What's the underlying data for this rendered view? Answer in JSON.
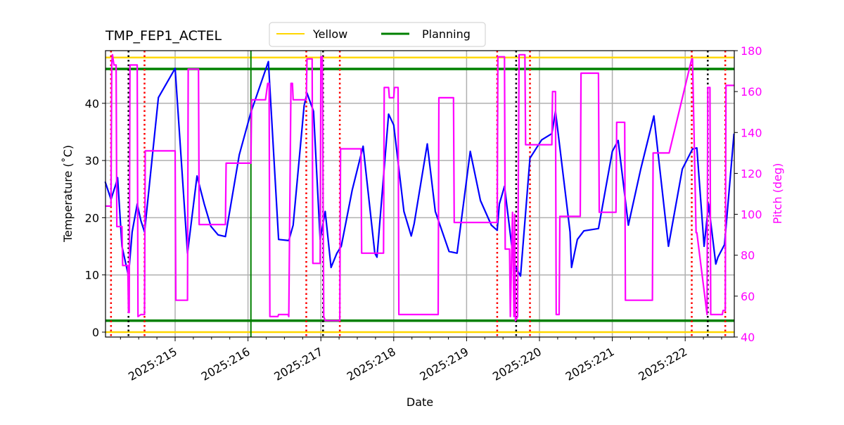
{
  "chart_data": {
    "type": "line",
    "title": "TMP_FEP1_ACTEL",
    "xlabel": "Date",
    "ylabel": "Temperature ($^\\circ$C)",
    "ylabel_display": "Temperature (˚C)",
    "y2label": "Pitch (deg)",
    "x_range": [
      214.04,
      222.67
    ],
    "ylim": [
      -0.9,
      49.3
    ],
    "y2lim": [
      40,
      180
    ],
    "grid": true,
    "x_ticks": [
      215,
      216,
      217,
      218,
      219,
      220,
      221,
      222
    ],
    "x_tick_labels": [
      "2025:215",
      "2025:216",
      "2025:217",
      "2025:218",
      "2025:219",
      "2025:220",
      "2025:221",
      "2025:222"
    ],
    "y_ticks": [
      0,
      10,
      20,
      30,
      40
    ],
    "y2_ticks": [
      40,
      60,
      80,
      100,
      120,
      140,
      160,
      180
    ],
    "legend": {
      "position": "upper center (above axes)",
      "entries": [
        {
          "label": "Yellow",
          "color": "#ffd700"
        },
        {
          "label": "Planning",
          "color": "#008000"
        }
      ]
    },
    "limit_lines": [
      {
        "name": "Yellow high",
        "value": 48,
        "color": "#ffd700"
      },
      {
        "name": "Yellow low",
        "value": 0,
        "color": "#ffd700"
      },
      {
        "name": "Planning high",
        "value": 46,
        "color": "#008000"
      },
      {
        "name": "Planning low",
        "value": 2,
        "color": "#008000"
      }
    ],
    "vertical_lines": [
      {
        "x": 214.12,
        "color": "#ff0000",
        "style": "dotted"
      },
      {
        "x": 214.36,
        "color": "#000000",
        "style": "dotted"
      },
      {
        "x": 214.58,
        "color": "#ff0000",
        "style": "dotted"
      },
      {
        "x": 216.04,
        "color": "#008000",
        "style": "solid"
      },
      {
        "x": 216.8,
        "color": "#ff0000",
        "style": "dotted"
      },
      {
        "x": 217.03,
        "color": "#000000",
        "style": "dotted"
      },
      {
        "x": 217.26,
        "color": "#ff0000",
        "style": "dotted"
      },
      {
        "x": 219.42,
        "color": "#ff0000",
        "style": "dotted"
      },
      {
        "x": 219.68,
        "color": "#000000",
        "style": "dotted"
      },
      {
        "x": 219.87,
        "color": "#ff0000",
        "style": "dotted"
      },
      {
        "x": 222.09,
        "color": "#ff0000",
        "style": "dotted"
      },
      {
        "x": 222.31,
        "color": "#000000",
        "style": "dotted"
      },
      {
        "x": 222.55,
        "color": "#ff0000",
        "style": "dotted"
      }
    ],
    "series": [
      {
        "name": "TMP_FEP1_ACTEL",
        "axis": "left",
        "color": "#0000ff",
        "x": [
          214.04,
          214.12,
          214.19,
          214.21,
          214.27,
          214.36,
          214.41,
          214.48,
          214.53,
          214.58,
          214.77,
          215.0,
          215.17,
          215.3,
          215.4,
          215.49,
          215.59,
          215.69,
          215.88,
          216.04,
          216.28,
          216.42,
          216.56,
          216.62,
          216.77,
          216.81,
          216.9,
          216.99,
          217.06,
          217.14,
          217.22,
          217.28,
          217.43,
          217.58,
          217.74,
          217.77,
          217.93,
          218.0,
          218.14,
          218.24,
          218.28,
          218.46,
          218.57,
          218.76,
          218.87,
          219.05,
          219.19,
          219.34,
          219.42,
          219.45,
          219.52,
          219.65,
          219.74,
          219.87,
          220.03,
          220.17,
          220.22,
          220.42,
          220.44,
          220.52,
          220.61,
          220.81,
          221.0,
          221.08,
          221.22,
          221.39,
          221.57,
          221.77,
          221.96,
          222.1,
          222.16,
          222.26,
          222.32,
          222.42,
          222.45,
          222.54,
          222.67
        ],
        "values": [
          26.3,
          23.2,
          26.0,
          27.0,
          15.0,
          9.8,
          17.5,
          22.4,
          19.5,
          17.5,
          41.0,
          46.1,
          13.8,
          27.3,
          22.4,
          18.5,
          17.0,
          16.7,
          31.0,
          38.4,
          47.3,
          16.2,
          16.0,
          18.7,
          39.6,
          41.8,
          38.6,
          16.2,
          21.1,
          11.3,
          13.8,
          15.0,
          24.8,
          32.5,
          13.8,
          13.1,
          38.1,
          36.2,
          21.1,
          16.8,
          18.9,
          32.9,
          21.1,
          14.1,
          13.8,
          31.6,
          23.0,
          18.7,
          17.8,
          22.4,
          25.5,
          11.9,
          9.8,
          30.4,
          33.6,
          34.7,
          38.6,
          17.5,
          11.3,
          16.2,
          17.7,
          18.1,
          31.6,
          33.5,
          18.7,
          28.5,
          37.8,
          15.0,
          28.5,
          32.0,
          32.2,
          15.0,
          22.4,
          11.9,
          13.1,
          15.3,
          34.7
        ]
      },
      {
        "name": "Pitch",
        "axis": "right",
        "color": "#ff00ff",
        "x": [
          214.04,
          214.12,
          214.13,
          214.14,
          214.16,
          214.19,
          214.2,
          214.21,
          214.23,
          214.27,
          214.28,
          214.35,
          214.36,
          214.37,
          214.38,
          214.48,
          214.49,
          214.53,
          214.54,
          214.58,
          214.59,
          214.99,
          215.0,
          215.01,
          215.13,
          215.14,
          215.17,
          215.18,
          215.32,
          215.33,
          215.69,
          215.7,
          216.04,
          216.05,
          216.24,
          216.27,
          216.29,
          216.3,
          216.41,
          216.42,
          216.55,
          216.56,
          216.59,
          216.61,
          216.62,
          216.8,
          216.81,
          216.88,
          216.89,
          216.99,
          217.0,
          217.02,
          217.04,
          217.05,
          217.06,
          217.07,
          217.25,
          217.26,
          217.27,
          217.55,
          217.56,
          217.86,
          217.87,
          217.93,
          217.94,
          218.0,
          218.01,
          218.06,
          218.07,
          218.34,
          218.35,
          218.61,
          218.62,
          218.82,
          218.83,
          219.09,
          219.1,
          219.42,
          219.43,
          219.52,
          219.53,
          219.59,
          219.6,
          219.63,
          219.65,
          219.66,
          219.67,
          219.7,
          219.72,
          219.8,
          219.81,
          219.87,
          219.88,
          220.17,
          220.18,
          220.22,
          220.23,
          220.27,
          220.28,
          220.56,
          220.57,
          220.81,
          220.82,
          221.05,
          221.06,
          221.17,
          221.18,
          221.55,
          221.56,
          221.77,
          221.78,
          222.09,
          222.1,
          222.15,
          222.16,
          222.3,
          222.31,
          222.34,
          222.35,
          222.51,
          222.52,
          222.55,
          222.56,
          222.67
        ],
        "values": [
          104,
          104,
          174,
          178,
          173,
          173,
          94,
          94,
          94,
          94,
          75,
          75,
          52,
          52,
          173,
          173,
          50,
          51,
          51,
          51,
          131,
          131,
          131,
          58,
          58,
          58,
          58,
          171,
          171,
          95,
          95,
          125,
          125,
          156,
          156,
          164,
          164,
          50,
          50,
          51,
          51,
          50,
          164,
          164,
          156,
          156,
          176,
          176,
          76,
          76,
          177,
          177,
          50,
          49,
          48,
          48,
          48,
          48,
          132,
          132,
          81,
          81,
          162,
          162,
          157,
          157,
          162,
          162,
          51,
          51,
          51,
          51,
          157,
          157,
          96,
          96,
          96,
          96,
          177,
          177,
          83,
          83,
          50,
          101,
          50,
          100,
          48,
          50,
          178,
          178,
          134,
          134,
          134,
          134,
          160,
          160,
          51,
          51,
          99,
          99,
          169,
          169,
          101,
          101,
          145,
          145,
          58,
          58,
          130,
          130,
          130,
          176,
          176,
          91,
          91,
          51,
          162,
          162,
          51,
          51,
          53,
          53,
          163,
          163
        ]
      }
    ]
  }
}
